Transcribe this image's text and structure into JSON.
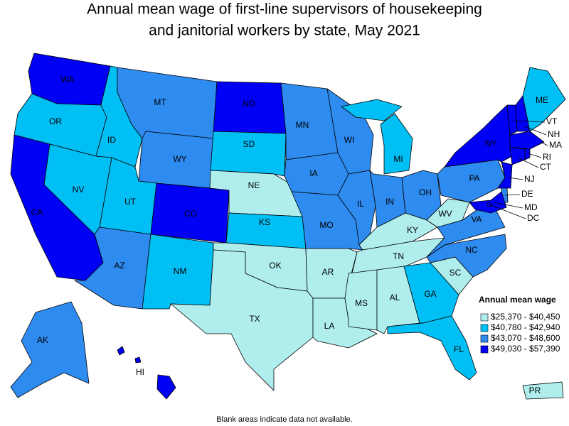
{
  "title": [
    "Annual mean wage of first-line supervisors of housekeeping",
    "and janitorial workers by state, May 2021"
  ],
  "legend": {
    "title": "Annual mean wage",
    "items": [
      {
        "label": "$25,370 - $40,450",
        "color": "#b0eeee"
      },
      {
        "label": "$40,780 - $42,940",
        "color": "#00bff5"
      },
      {
        "label": "$43,070 - $48,600",
        "color": "#2e8bef"
      },
      {
        "label": "$49,030 - $57,390",
        "color": "#0000f5"
      }
    ]
  },
  "states": [
    {
      "label": "WA",
      "class": 3
    },
    {
      "label": "OR",
      "class": 1
    },
    {
      "label": "CA",
      "class": 3
    },
    {
      "label": "NV",
      "class": 1
    },
    {
      "label": "ID",
      "class": 1
    },
    {
      "label": "MT",
      "class": 2
    },
    {
      "label": "WY",
      "class": 2
    },
    {
      "label": "UT",
      "class": 1
    },
    {
      "label": "CO",
      "class": 3
    },
    {
      "label": "AZ",
      "class": 2
    },
    {
      "label": "NM",
      "class": 1
    },
    {
      "label": "ND",
      "class": 3
    },
    {
      "label": "SD",
      "class": 1
    },
    {
      "label": "NE",
      "class": 0
    },
    {
      "label": "KS",
      "class": 1
    },
    {
      "label": "OK",
      "class": 0
    },
    {
      "label": "TX",
      "class": 0
    },
    {
      "label": "MN",
      "class": 2
    },
    {
      "label": "IA",
      "class": 2
    },
    {
      "label": "MO",
      "class": 2
    },
    {
      "label": "AR",
      "class": 0
    },
    {
      "label": "LA",
      "class": 0
    },
    {
      "label": "WI",
      "class": 2
    },
    {
      "label": "IL",
      "class": 2
    },
    {
      "label": "MI",
      "class": 1
    },
    {
      "label": "IN",
      "class": 2
    },
    {
      "label": "OH",
      "class": 2
    },
    {
      "label": "KY",
      "class": 0
    },
    {
      "label": "TN",
      "class": 0
    },
    {
      "label": "MS",
      "class": 0
    },
    {
      "label": "AL",
      "class": 0
    },
    {
      "label": "GA",
      "class": 1
    },
    {
      "label": "FL",
      "class": 1
    },
    {
      "label": "SC",
      "class": 0
    },
    {
      "label": "NC",
      "class": 2
    },
    {
      "label": "VA",
      "class": 2
    },
    {
      "label": "WV",
      "class": 0
    },
    {
      "label": "PA",
      "class": 2
    },
    {
      "label": "NY",
      "class": 3
    },
    {
      "label": "VT",
      "class": 3
    },
    {
      "label": "NH",
      "class": 3
    },
    {
      "label": "ME",
      "class": 1
    },
    {
      "label": "MA",
      "class": 3
    },
    {
      "label": "CT",
      "class": 3
    },
    {
      "label": "RI",
      "class": 3
    },
    {
      "label": "NJ",
      "class": 3
    },
    {
      "label": "DE",
      "class": 2
    },
    {
      "label": "MD",
      "class": 3
    },
    {
      "label": "DC",
      "class": 3
    },
    {
      "label": "AK",
      "class": 2
    },
    {
      "label": "HI",
      "class": 3
    },
    {
      "label": "PR",
      "class": 0
    }
  ],
  "footnote": "Blank areas indicate data not available."
}
